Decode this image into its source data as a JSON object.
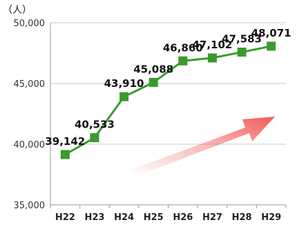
{
  "chart_data": {
    "type": "line",
    "title": "",
    "xlabel": "",
    "ylabel": "（人）",
    "categories": [
      "H22",
      "H23",
      "H24",
      "H25",
      "H26",
      "H27",
      "H28",
      "H29"
    ],
    "series": [
      {
        "values": [
          39142,
          40533,
          43910,
          45088,
          46860,
          47102,
          47583,
          48071
        ],
        "data_labels": [
          "39,142",
          "40,533",
          "43,910",
          "45,088",
          "46,860",
          "47,102",
          "47,583",
          "48,071"
        ]
      }
    ],
    "y_ticks": [
      35000,
      40000,
      45000,
      50000
    ],
    "y_tick_labels": [
      "35,000",
      "40,000",
      "45,000",
      "50,000"
    ],
    "ylim": [
      35000,
      50000
    ],
    "grid": "horizontal",
    "legend": "none",
    "line_color": "#3a9a2e",
    "marker_color": "#3a9a2e",
    "arrow_color": "#f05a5a",
    "trend_arrow": "up"
  }
}
